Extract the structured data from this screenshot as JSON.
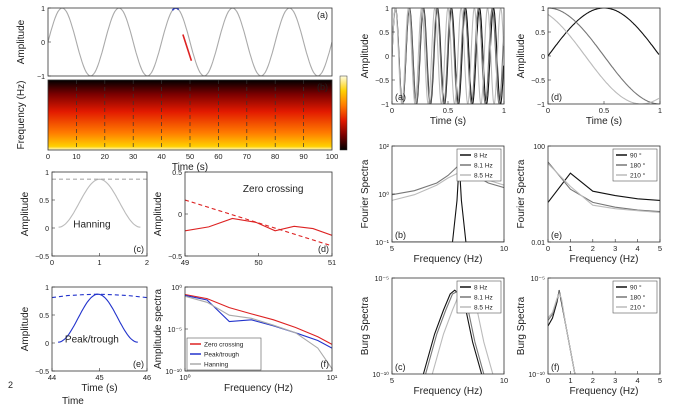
{
  "stray_text": {
    "left_digit": "2",
    "bottom_text": "Time"
  },
  "chart_data": [
    {
      "id": "a",
      "type": "line",
      "panel_label": "(a)",
      "xlabel": "",
      "ylabel": "Amplitude",
      "xlim": [
        0,
        100
      ],
      "ylim": [
        -1,
        1
      ],
      "yticks": [
        "1",
        "0",
        "−1"
      ],
      "series": [
        {
          "kind": "sine",
          "period": 20,
          "color": "#aaaaaa"
        },
        {
          "kind": "peak_marker",
          "x": 45,
          "color": "#3344cc"
        },
        {
          "kind": "segment",
          "x": [
            47.5,
            50.5
          ],
          "y": [
            0.22,
            -0.55
          ],
          "color": "#dd2222"
        }
      ]
    },
    {
      "id": "b",
      "type": "heatmap",
      "panel_label": "(b)",
      "xlabel": "Time (s)",
      "ylabel": "Frequency (Hz)",
      "xlim": [
        0,
        100
      ],
      "xticks": [
        "0",
        "10",
        "20",
        "30",
        "40",
        "50",
        "60",
        "70",
        "80",
        "90",
        "100"
      ],
      "vlines": [
        10,
        20,
        30,
        40,
        50,
        60,
        70,
        80,
        90
      ],
      "colormap": [
        "#000000",
        "#7a0000",
        "#e21a00",
        "#ff7a00",
        "#ffd000",
        "#fffde0"
      ]
    },
    {
      "id": "c",
      "type": "line",
      "panel_label": "(c)",
      "annotation": "Hanning",
      "xlabel": "",
      "ylabel": "Amplitude",
      "xlim": [
        -0.2,
        2.7
      ],
      "ylim": [
        -0.6,
        1.15
      ],
      "xticks": [
        "0",
        "1",
        "2"
      ],
      "yticks": [
        "1",
        "0.5",
        "0",
        "−0.5"
      ],
      "series": [
        {
          "kind": "hanning",
          "x0": 0,
          "x1": 2.5,
          "color": "#bbbbbb"
        },
        {
          "kind": "hline",
          "y": 1,
          "color": "#aaaaaa",
          "dash": true
        }
      ]
    },
    {
      "id": "d",
      "type": "line",
      "panel_label": "(d)",
      "annotation": "Zero crossing",
      "xlabel": "",
      "ylabel": "Amplitude",
      "xlim": [
        48.5,
        51.6
      ],
      "ylim": [
        -0.55,
        0.95
      ],
      "xticks": [
        "49",
        "50",
        "51"
      ],
      "yticks": [
        "0.5",
        "0",
        "−0.5"
      ],
      "series": [
        {
          "kind": "points",
          "x": [
            48.5,
            51.6
          ],
          "y": [
            0.45,
            -0.37
          ],
          "color": "#dd2222",
          "dash": true
        },
        {
          "kind": "points",
          "x": [
            48.5,
            49.0,
            49.5,
            50.0,
            50.4,
            50.8,
            51.2,
            51.6
          ],
          "y": [
            -0.1,
            -0.03,
            0.12,
            0.05,
            -0.1,
            -0.02,
            -0.06,
            -0.18
          ],
          "color": "#dd2222",
          "dash": false
        }
      ]
    },
    {
      "id": "e",
      "type": "line",
      "panel_label": "(e)",
      "annotation": "Peak/trough",
      "xlabel": "Time (s)",
      "ylabel": "Amplitude",
      "xlim": [
        43.5,
        46.6
      ],
      "ylim": [
        -0.6,
        1.15
      ],
      "xticks": [
        "44",
        "45",
        "46"
      ],
      "yticks": [
        "1",
        "0.5",
        "0",
        "−0.5"
      ],
      "series": [
        {
          "kind": "points",
          "x": [
            43.5,
            44.0,
            44.5,
            45.0,
            45.5,
            46.0,
            46.6
          ],
          "y": [
            0.93,
            0.97,
            0.99,
            1.0,
            0.99,
            0.97,
            0.93
          ],
          "color": "#2233cc",
          "dash": true
        },
        {
          "kind": "hanning",
          "x0": 43.7,
          "x1": 46.3,
          "color": "#2233cc"
        }
      ]
    },
    {
      "id": "f",
      "type": "line",
      "panel_label": "(f)",
      "xlabel": "Frequency (Hz)",
      "ylabel": "Amplitude spectra",
      "xscale": "log",
      "yscale": "log",
      "xlim": [
        0.5,
        50
      ],
      "ylim": [
        1e-10,
        10
      ],
      "xticks": [
        "10⁰",
        "10¹"
      ],
      "yticks": [
        "10⁰",
        "10⁻⁵",
        "10⁻¹⁰"
      ],
      "series": [
        {
          "name": "Zero crossing",
          "color": "#dd2222",
          "x": [
            0.5,
            1,
            2,
            4,
            8,
            16,
            32,
            50
          ],
          "y": [
            1,
            0.3,
            0.02,
            0.003,
            0.0005,
            5e-05,
            3e-06,
            3e-07
          ]
        },
        {
          "name": "Peak/trough",
          "color": "#2233cc",
          "x": [
            0.5,
            1,
            2,
            4,
            8,
            16,
            32,
            50
          ],
          "y": [
            0.8,
            0.2,
            0.0003,
            0.0005,
            8e-05,
            1e-05,
            1e-06,
            1e-07
          ]
        },
        {
          "name": "Hanning",
          "color": "#aaaaaa",
          "x": [
            0.5,
            1,
            2,
            4,
            8,
            16,
            32,
            50
          ],
          "y": [
            0.6,
            0.1,
            0.002,
            0.0008,
            0.0001,
            1e-05,
            1e-07,
            2e-10
          ]
        }
      ],
      "legend_position": "bottom-left"
    },
    {
      "id": "ra",
      "type": "line",
      "panel_label": "(a)",
      "xlabel": "Time (s)",
      "ylabel": "Amplitude",
      "xlim": [
        0,
        1
      ],
      "ylim": [
        -1,
        1
      ],
      "xticks": [
        "0",
        "0.5",
        "1"
      ],
      "yticks": [
        "1",
        "0.5",
        "0",
        "−0.5",
        "−1"
      ],
      "series": [
        {
          "kind": "sine",
          "freq": 8,
          "color": "#111111"
        },
        {
          "kind": "sine",
          "freq": 8.1,
          "color": "#777777"
        },
        {
          "kind": "sine",
          "freq": 8.5,
          "color": "#bbbbbb"
        }
      ]
    },
    {
      "id": "rd",
      "type": "line",
      "panel_label": "(d)",
      "xlabel": "Time (s)",
      "ylabel": "Amplitude",
      "xlim": [
        0,
        1
      ],
      "ylim": [
        -1,
        1
      ],
      "xticks": [
        "0",
        "0.5",
        "1"
      ],
      "yticks": [
        "1",
        "0.5",
        "0",
        "−0.5",
        "−1"
      ],
      "series": [
        {
          "kind": "cos",
          "phase": 90,
          "color": "#111111"
        },
        {
          "kind": "cos",
          "phase": 180,
          "color": "#777777"
        },
        {
          "kind": "cos",
          "phase": 210,
          "color": "#bbbbbb"
        }
      ]
    },
    {
      "id": "rb",
      "type": "line",
      "panel_label": "(b)",
      "xlabel": "Frequency (Hz)",
      "ylabel": "Fourier Spectra",
      "yscale": "log",
      "xlim": [
        5,
        10
      ],
      "ylim": [
        0.1,
        100
      ],
      "xticks": [
        "5",
        "10"
      ],
      "yticks": [
        "10²",
        "10⁰",
        "10⁻¹"
      ],
      "series": [
        {
          "name": "8 Hz",
          "color": "#111111",
          "x": [
            5,
            7.7,
            7.9,
            8.0,
            8.1,
            8.3,
            10
          ],
          "y": [
            0.1,
            0.1,
            2,
            30,
            2,
            0.1,
            0.1
          ]
        },
        {
          "name": "8.1 Hz",
          "color": "#777777",
          "x": [
            5,
            6,
            7,
            7.5,
            8.1,
            8.7,
            9.3,
            10
          ],
          "y": [
            3,
            4,
            7,
            12,
            30,
            12,
            7,
            5
          ]
        },
        {
          "name": "8.5 Hz",
          "color": "#bbbbbb",
          "x": [
            5,
            6,
            7,
            7.5,
            8.5,
            9.2,
            10
          ],
          "y": [
            2,
            3,
            6,
            10,
            22,
            9,
            6
          ]
        }
      ],
      "legend_position": "top-right"
    },
    {
      "id": "re",
      "type": "line",
      "panel_label": "(e)",
      "xlabel": "Frequency (Hz)",
      "ylabel": "Fourier Spectra",
      "yscale": "log",
      "xlim": [
        0,
        5
      ],
      "ylim": [
        0.01,
        10000
      ],
      "xticks": [
        "0",
        "1",
        "2",
        "3",
        "4",
        "5"
      ],
      "yticks": [
        "100",
        "0.01"
      ],
      "series": [
        {
          "name": "90 °",
          "color": "#111111",
          "x": [
            0,
            1,
            2,
            3,
            4,
            5
          ],
          "y": [
            3,
            200,
            15,
            8,
            5,
            4
          ]
        },
        {
          "name": "180 °",
          "color": "#777777",
          "x": [
            0,
            1,
            2,
            3,
            4,
            5
          ],
          "y": [
            1000,
            20,
            3,
            1.5,
            1.0,
            0.8
          ]
        },
        {
          "name": "210 °",
          "color": "#bbbbbb",
          "x": [
            0,
            1,
            2,
            3,
            4,
            5
          ],
          "y": [
            800,
            30,
            2,
            1.2,
            0.9,
            0.7
          ]
        }
      ],
      "legend_position": "top-right"
    },
    {
      "id": "rc",
      "type": "line",
      "panel_label": "(c)",
      "xlabel": "Frequency (Hz)",
      "ylabel": "Burg Spectra",
      "yscale": "log",
      "xlim": [
        5,
        10
      ],
      "ylim": [
        1e-15,
        0.001
      ],
      "xticks": [
        "5",
        "10"
      ],
      "yticks": [
        "10⁻⁵",
        "10⁻¹⁰"
      ],
      "series": [
        {
          "name": "8 Hz",
          "color": "#111111",
          "x": [
            6.4,
            6.9,
            7.3,
            7.6,
            7.8,
            8.0,
            8.3,
            8.6,
            9.0
          ],
          "y": [
            1e-15,
            1e-10,
            1e-07,
            1e-05,
            3e-05,
            1e-05,
            1e-07,
            1e-11,
            1e-15
          ]
        },
        {
          "name": "8.1 Hz",
          "color": "#777777",
          "x": [
            6.5,
            7.0,
            7.4,
            7.7,
            7.9,
            8.1,
            8.4,
            8.7,
            9.1
          ],
          "y": [
            1e-15,
            1e-10,
            1e-07,
            1e-05,
            2e-05,
            8e-06,
            1e-07,
            1e-11,
            1e-15
          ]
        },
        {
          "name": "8.5 Hz",
          "color": "#bbbbbb",
          "x": [
            6.8,
            7.3,
            7.7,
            8.0,
            8.3,
            8.5,
            8.8,
            9.1,
            9.5
          ],
          "y": [
            1e-15,
            1e-10,
            1e-07,
            1e-05,
            2e-05,
            8e-06,
            1e-07,
            1e-11,
            1e-15
          ]
        }
      ],
      "legend_position": "top-right"
    },
    {
      "id": "rf",
      "type": "line",
      "panel_label": "(f)",
      "xlabel": "Frequency (Hz)",
      "ylabel": "Burg Spectra",
      "yscale": "log",
      "xlim": [
        0,
        5
      ],
      "ylim": [
        1e-15,
        0.001
      ],
      "xticks": [
        "0",
        "1",
        "2",
        "3",
        "4",
        "5"
      ],
      "yticks": [
        "10⁻⁵",
        "10⁻¹⁰"
      ],
      "series": [
        {
          "name": "90 °",
          "color": "#111111",
          "x": [
            0,
            0.2,
            0.4,
            0.5,
            0.6,
            0.8,
            1.0,
            1.2
          ],
          "y": [
            1e-09,
            1e-08,
            1e-06,
            3e-05,
            1e-06,
            1e-09,
            1e-12,
            1e-15
          ]
        },
        {
          "name": "180 °",
          "color": "#777777",
          "x": [
            0,
            0.2,
            0.4,
            0.5,
            0.6,
            0.8,
            1.0,
            1.2
          ],
          "y": [
            5e-09,
            3e-08,
            2e-06,
            2e-05,
            2e-06,
            1e-09,
            1e-12,
            1e-15
          ]
        },
        {
          "name": "210 °",
          "color": "#bbbbbb",
          "x": [
            0,
            0.2,
            0.4,
            0.5,
            0.6,
            0.8,
            1.0,
            1.2
          ],
          "y": [
            1e-08,
            5e-08,
            3e-06,
            1e-05,
            3e-06,
            1e-09,
            1e-12,
            1e-15
          ]
        }
      ],
      "legend_position": "top-right"
    }
  ]
}
